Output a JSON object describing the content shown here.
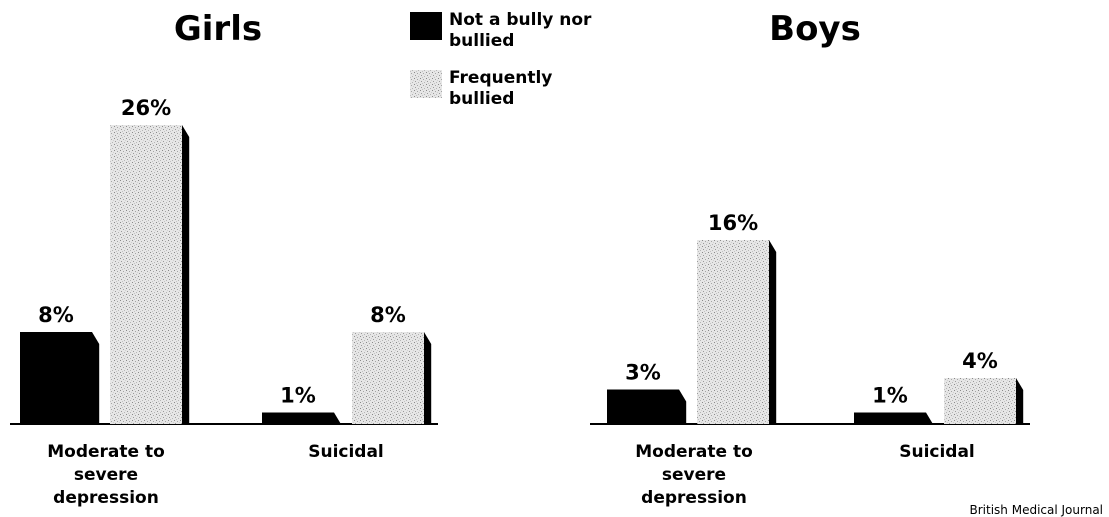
{
  "colors": {
    "not_bully": "#000000",
    "frequently_bullied": "#d4d4d4",
    "baseline": "#000000"
  },
  "legend": [
    {
      "series": "not_bully",
      "label_lines": [
        "Not a bully nor",
        "bullied"
      ]
    },
    {
      "series": "frequently_bullied",
      "label_lines": [
        "Frequently",
        "bullied"
      ]
    }
  ],
  "source": "British Medical Journal",
  "chart_data": [
    {
      "type": "bar",
      "title": "Girls",
      "categories": [
        [
          "Moderate to",
          "severe",
          "depression"
        ],
        [
          "Suicidal"
        ]
      ],
      "series": [
        {
          "name": "Not a bully nor bullied",
          "key": "not_bully",
          "values": [
            8,
            1
          ],
          "labels": [
            "8%",
            "1%"
          ]
        },
        {
          "name": "Frequently bullied",
          "key": "frequently_bullied",
          "values": [
            26,
            8
          ],
          "labels": [
            "26%",
            "8%"
          ]
        }
      ],
      "ylim": [
        0,
        30
      ],
      "grid": false
    },
    {
      "type": "bar",
      "title": "Boys",
      "categories": [
        [
          "Moderate to",
          "severe",
          "depression"
        ],
        [
          "Suicidal"
        ]
      ],
      "series": [
        {
          "name": "Not a bully nor bullied",
          "key": "not_bully",
          "values": [
            3,
            1
          ],
          "labels": [
            "3%",
            "1%"
          ]
        },
        {
          "name": "Frequently bullied",
          "key": "frequently_bullied",
          "values": [
            16,
            4
          ],
          "labels": [
            "16%",
            "4%"
          ]
        }
      ],
      "ylim": [
        0,
        30
      ],
      "grid": false
    }
  ]
}
